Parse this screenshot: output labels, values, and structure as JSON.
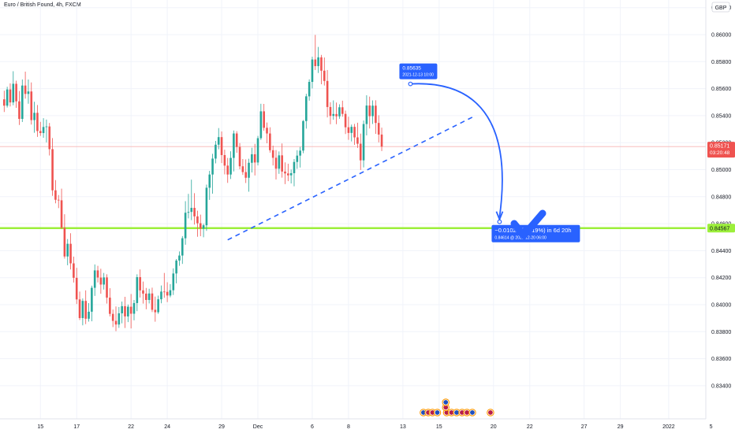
{
  "header": {
    "title": "Euro / British Pound, 4h, FXCM",
    "currency": "GBP"
  },
  "colors": {
    "up": "#26a69a",
    "down": "#ef5350",
    "trendline": "#2962ff",
    "support": "#9cef3b",
    "callout": "#2962ff",
    "price_tag": "#ef5350",
    "check": "#2962ff"
  },
  "chart_data": {
    "type": "candlestick",
    "title": "Euro / British Pound, 4h, FXCM",
    "ylim": [
      0.8316,
      0.863
    ],
    "y_ticks": [
      "0.86200",
      "0.86000",
      "0.85800",
      "0.85600",
      "0.85400",
      "0.85200",
      "0.85000",
      "0.84800",
      "0.84600",
      "0.84400",
      "0.84200",
      "0.84000",
      "0.83800",
      "0.83600",
      "0.83400"
    ],
    "x_ticks": [
      {
        "label": "15",
        "t": 12
      },
      {
        "label": "17",
        "t": 24
      },
      {
        "label": "22",
        "t": 42
      },
      {
        "label": "24",
        "t": 54
      },
      {
        "label": "29",
        "t": 72
      },
      {
        "label": "Dec",
        "t": 84
      },
      {
        "label": "6",
        "t": 102
      },
      {
        "label": "8",
        "t": 114
      },
      {
        "label": "13",
        "t": 132
      },
      {
        "label": "15",
        "t": 144
      },
      {
        "label": "20",
        "t": 162
      },
      {
        "label": "22",
        "t": 174
      },
      {
        "label": "27",
        "t": 192
      },
      {
        "label": "29",
        "t": 204
      },
      {
        "label": "2022",
        "t": 220
      },
      {
        "label": "5",
        "t": 234
      }
    ],
    "last_price": {
      "value": "0.85171",
      "countdown": "03:20:48",
      "y": 0.85171
    },
    "support": {
      "value": "0.84567",
      "y": 0.84567
    },
    "trendline": {
      "t1": 74,
      "y1": 0.8448,
      "t2": 156,
      "y2": 0.854
    },
    "projection": {
      "from": {
        "t": 134.5,
        "y": 0.85635,
        "label": "0.85635",
        "date": "2021-12-13 10:00"
      },
      "to": {
        "t": 164,
        "y": 0.84614,
        "label": "−0.01021 (−1.19%) in 6d 20h",
        "sub": "0.84614 @ 2021-12-20  06:00"
      }
    },
    "candles": [
      [
        0.85521,
        0.85585,
        0.85427,
        0.85474
      ],
      [
        0.85474,
        0.85614,
        0.8546,
        0.85594
      ],
      [
        0.85594,
        0.85639,
        0.85468,
        0.85498
      ],
      [
        0.85498,
        0.85729,
        0.85477,
        0.85636
      ],
      [
        0.85636,
        0.85659,
        0.85458,
        0.85506
      ],
      [
        0.85506,
        0.85582,
        0.85331,
        0.85376
      ],
      [
        0.85376,
        0.85668,
        0.85353,
        0.85623
      ],
      [
        0.85623,
        0.85726,
        0.85526,
        0.85561
      ],
      [
        0.85561,
        0.85668,
        0.85488,
        0.85579
      ],
      [
        0.85579,
        0.85646,
        0.85334,
        0.85367
      ],
      [
        0.85367,
        0.85503,
        0.85273,
        0.85421
      ],
      [
        0.85421,
        0.85479,
        0.85243,
        0.85286
      ],
      [
        0.85286,
        0.85354,
        0.8525,
        0.85271
      ],
      [
        0.85271,
        0.85381,
        0.85236,
        0.85316
      ],
      [
        0.85316,
        0.85371,
        0.85202,
        0.8532
      ],
      [
        0.8532,
        0.85346,
        0.85105,
        0.85152
      ],
      [
        0.85152,
        0.85234,
        0.84806,
        0.84847
      ],
      [
        0.84847,
        0.84923,
        0.84751,
        0.84777
      ],
      [
        0.84777,
        0.84812,
        0.84715,
        0.84773
      ],
      [
        0.84773,
        0.84859,
        0.84561,
        0.84569
      ],
      [
        0.84569,
        0.8467,
        0.84341,
        0.84357
      ],
      [
        0.84357,
        0.84486,
        0.84292,
        0.84451
      ],
      [
        0.84451,
        0.84529,
        0.84261,
        0.84306
      ],
      [
        0.84306,
        0.84356,
        0.84164,
        0.84199
      ],
      [
        0.84199,
        0.84273,
        0.84005,
        0.84039
      ],
      [
        0.84039,
        0.84097,
        0.83886,
        0.83901
      ],
      [
        0.83901,
        0.84046,
        0.83847,
        0.84028
      ],
      [
        0.84028,
        0.84106,
        0.83856,
        0.83896
      ],
      [
        0.83896,
        0.84012,
        0.83875,
        0.83948
      ],
      [
        0.83948,
        0.84141,
        0.83877,
        0.84125
      ],
      [
        0.84125,
        0.84298,
        0.84065,
        0.84254
      ],
      [
        0.84254,
        0.84288,
        0.84165,
        0.84201
      ],
      [
        0.84201,
        0.84266,
        0.84081,
        0.84149
      ],
      [
        0.84149,
        0.84235,
        0.84112,
        0.84202
      ],
      [
        0.84202,
        0.84225,
        0.84008,
        0.84052
      ],
      [
        0.84052,
        0.84122,
        0.83913,
        0.83932
      ],
      [
        0.83932,
        0.83964,
        0.83834,
        0.8388
      ],
      [
        0.8388,
        0.83987,
        0.83804,
        0.83853
      ],
      [
        0.83853,
        0.83983,
        0.83828,
        0.83936
      ],
      [
        0.83936,
        0.84023,
        0.83862,
        0.83989
      ],
      [
        0.83989,
        0.84058,
        0.83827,
        0.83913
      ],
      [
        0.83913,
        0.84001,
        0.83871,
        0.83985
      ],
      [
        0.83985,
        0.84079,
        0.83824,
        0.83933
      ],
      [
        0.83933,
        0.84035,
        0.83884,
        0.84012
      ],
      [
        0.84012,
        0.84225,
        0.83952,
        0.84204
      ],
      [
        0.84204,
        0.84261,
        0.84053,
        0.84106
      ],
      [
        0.84106,
        0.84171,
        0.84008,
        0.84082
      ],
      [
        0.84082,
        0.84124,
        0.83966,
        0.84035
      ],
      [
        0.84035,
        0.84118,
        0.84009,
        0.84083
      ],
      [
        0.84083,
        0.84126,
        0.83945,
        0.83962
      ],
      [
        0.83962,
        0.8406,
        0.83874,
        0.83944
      ],
      [
        0.83944,
        0.84067,
        0.83932,
        0.8404
      ],
      [
        0.8404,
        0.84142,
        0.8401,
        0.84097
      ],
      [
        0.84097,
        0.84235,
        0.84051,
        0.84095
      ],
      [
        0.84095,
        0.84166,
        0.84019,
        0.84068
      ],
      [
        0.84068,
        0.84152,
        0.84055,
        0.84107
      ],
      [
        0.84107,
        0.84269,
        0.84072,
        0.84231
      ],
      [
        0.84231,
        0.84338,
        0.84158,
        0.84327
      ],
      [
        0.84327,
        0.84394,
        0.84288,
        0.84364
      ],
      [
        0.84364,
        0.84508,
        0.84302,
        0.84492
      ],
      [
        0.84492,
        0.84767,
        0.84444,
        0.84681
      ],
      [
        0.84681,
        0.84821,
        0.84639,
        0.84687
      ],
      [
        0.84687,
        0.84926,
        0.84626,
        0.84717
      ],
      [
        0.84717,
        0.84826,
        0.84593,
        0.84654
      ],
      [
        0.84654,
        0.84696,
        0.84503,
        0.84603
      ],
      [
        0.84603,
        0.84667,
        0.84507,
        0.84563
      ],
      [
        0.84563,
        0.84599,
        0.84499,
        0.84588
      ],
      [
        0.84588,
        0.84889,
        0.84547,
        0.84866
      ],
      [
        0.84866,
        0.84991,
        0.84776,
        0.84964
      ],
      [
        0.84964,
        0.85117,
        0.84822,
        0.85082
      ],
      [
        0.85082,
        0.85213,
        0.85047,
        0.85185
      ],
      [
        0.85185,
        0.85308,
        0.85151,
        0.85241
      ],
      [
        0.85241,
        0.85283,
        0.85049,
        0.85108
      ],
      [
        0.85108,
        0.85148,
        0.84965,
        0.8503
      ],
      [
        0.8503,
        0.85087,
        0.84902,
        0.84964
      ],
      [
        0.84964,
        0.85136,
        0.84931,
        0.85087
      ],
      [
        0.85087,
        0.8529,
        0.84987,
        0.85268
      ],
      [
        0.85268,
        0.85285,
        0.85125,
        0.85168
      ],
      [
        0.85168,
        0.85197,
        0.85003,
        0.85025
      ],
      [
        0.85025,
        0.85079,
        0.84961,
        0.84982
      ],
      [
        0.84982,
        0.85076,
        0.84901,
        0.8494
      ],
      [
        0.8494,
        0.85081,
        0.84837,
        0.85051
      ],
      [
        0.85051,
        0.85162,
        0.84979,
        0.85114
      ],
      [
        0.85114,
        0.85191,
        0.84957,
        0.85053
      ],
      [
        0.85053,
        0.8525,
        0.85031,
        0.85233
      ],
      [
        0.85233,
        0.85488,
        0.8522,
        0.85432
      ],
      [
        0.85432,
        0.85487,
        0.85288,
        0.8531
      ],
      [
        0.8531,
        0.85349,
        0.85195,
        0.85268
      ],
      [
        0.85268,
        0.85314,
        0.85126,
        0.85144
      ],
      [
        0.85144,
        0.85178,
        0.85031,
        0.85088
      ],
      [
        0.85088,
        0.85145,
        0.84927,
        0.85007
      ],
      [
        0.85007,
        0.85135,
        0.84969,
        0.85106
      ],
      [
        0.85106,
        0.85194,
        0.84941,
        0.84986
      ],
      [
        0.84986,
        0.85054,
        0.84893,
        0.84972
      ],
      [
        0.84972,
        0.85044,
        0.84915,
        0.84958
      ],
      [
        0.84958,
        0.85001,
        0.84898,
        0.84974
      ],
      [
        0.84974,
        0.85079,
        0.84877,
        0.85057
      ],
      [
        0.85057,
        0.85144,
        0.85006,
        0.85104
      ],
      [
        0.85104,
        0.85168,
        0.85016,
        0.85141
      ],
      [
        0.85141,
        0.85367,
        0.85122,
        0.8536
      ],
      [
        0.8536,
        0.85562,
        0.85304,
        0.85543
      ],
      [
        0.85543,
        0.85669,
        0.85511,
        0.8565
      ],
      [
        0.8565,
        0.85837,
        0.85601,
        0.85816
      ],
      [
        0.85816,
        0.85998,
        0.85738,
        0.85767
      ],
      [
        0.85767,
        0.85909,
        0.85716,
        0.85832
      ],
      [
        0.85832,
        0.8585,
        0.85633,
        0.85733
      ],
      [
        0.85733,
        0.85831,
        0.85623,
        0.85657
      ],
      [
        0.85657,
        0.85738,
        0.85387,
        0.85464
      ],
      [
        0.85464,
        0.85499,
        0.85336,
        0.85398
      ],
      [
        0.85398,
        0.85513,
        0.8537,
        0.85412
      ],
      [
        0.85412,
        0.85497,
        0.85337,
        0.85395
      ],
      [
        0.85395,
        0.85484,
        0.85377,
        0.85462
      ],
      [
        0.85462,
        0.85511,
        0.85392,
        0.85413
      ],
      [
        0.85413,
        0.85437,
        0.85264,
        0.85314
      ],
      [
        0.85314,
        0.85392,
        0.85221,
        0.85272
      ],
      [
        0.85272,
        0.85334,
        0.85209,
        0.85317
      ],
      [
        0.85317,
        0.85339,
        0.85184,
        0.85239
      ],
      [
        0.85239,
        0.85348,
        0.85161,
        0.85192
      ],
      [
        0.85192,
        0.85267,
        0.84998,
        0.85069
      ],
      [
        0.85069,
        0.85364,
        0.85017,
        0.85338
      ],
      [
        0.85338,
        0.85551,
        0.85254,
        0.85475
      ],
      [
        0.85475,
        0.85541,
        0.85305,
        0.85396
      ],
      [
        0.85396,
        0.85513,
        0.85338,
        0.85474
      ],
      [
        0.85474,
        0.85514,
        0.85265,
        0.85346
      ],
      [
        0.85346,
        0.85403,
        0.85202,
        0.8526
      ],
      [
        0.8526,
        0.85311,
        0.85138,
        0.85171
      ]
    ]
  },
  "events": [
    {
      "t": 138.8,
      "row": 0
    },
    {
      "t": 140.4,
      "row": 0
    },
    {
      "t": 141.8,
      "row": 0
    },
    {
      "t": 143.4,
      "row": 0
    },
    {
      "t": 146.5,
      "row": 0
    },
    {
      "t": 148.1,
      "row": 0
    },
    {
      "t": 149.8,
      "row": 0
    },
    {
      "t": 151.6,
      "row": 0
    },
    {
      "t": 153.2,
      "row": 0
    },
    {
      "t": 155.0,
      "row": 0
    },
    {
      "t": 161.0,
      "row": 0
    },
    {
      "t": 146.2,
      "row": 1
    },
    {
      "t": 146.2,
      "row": 2
    }
  ]
}
